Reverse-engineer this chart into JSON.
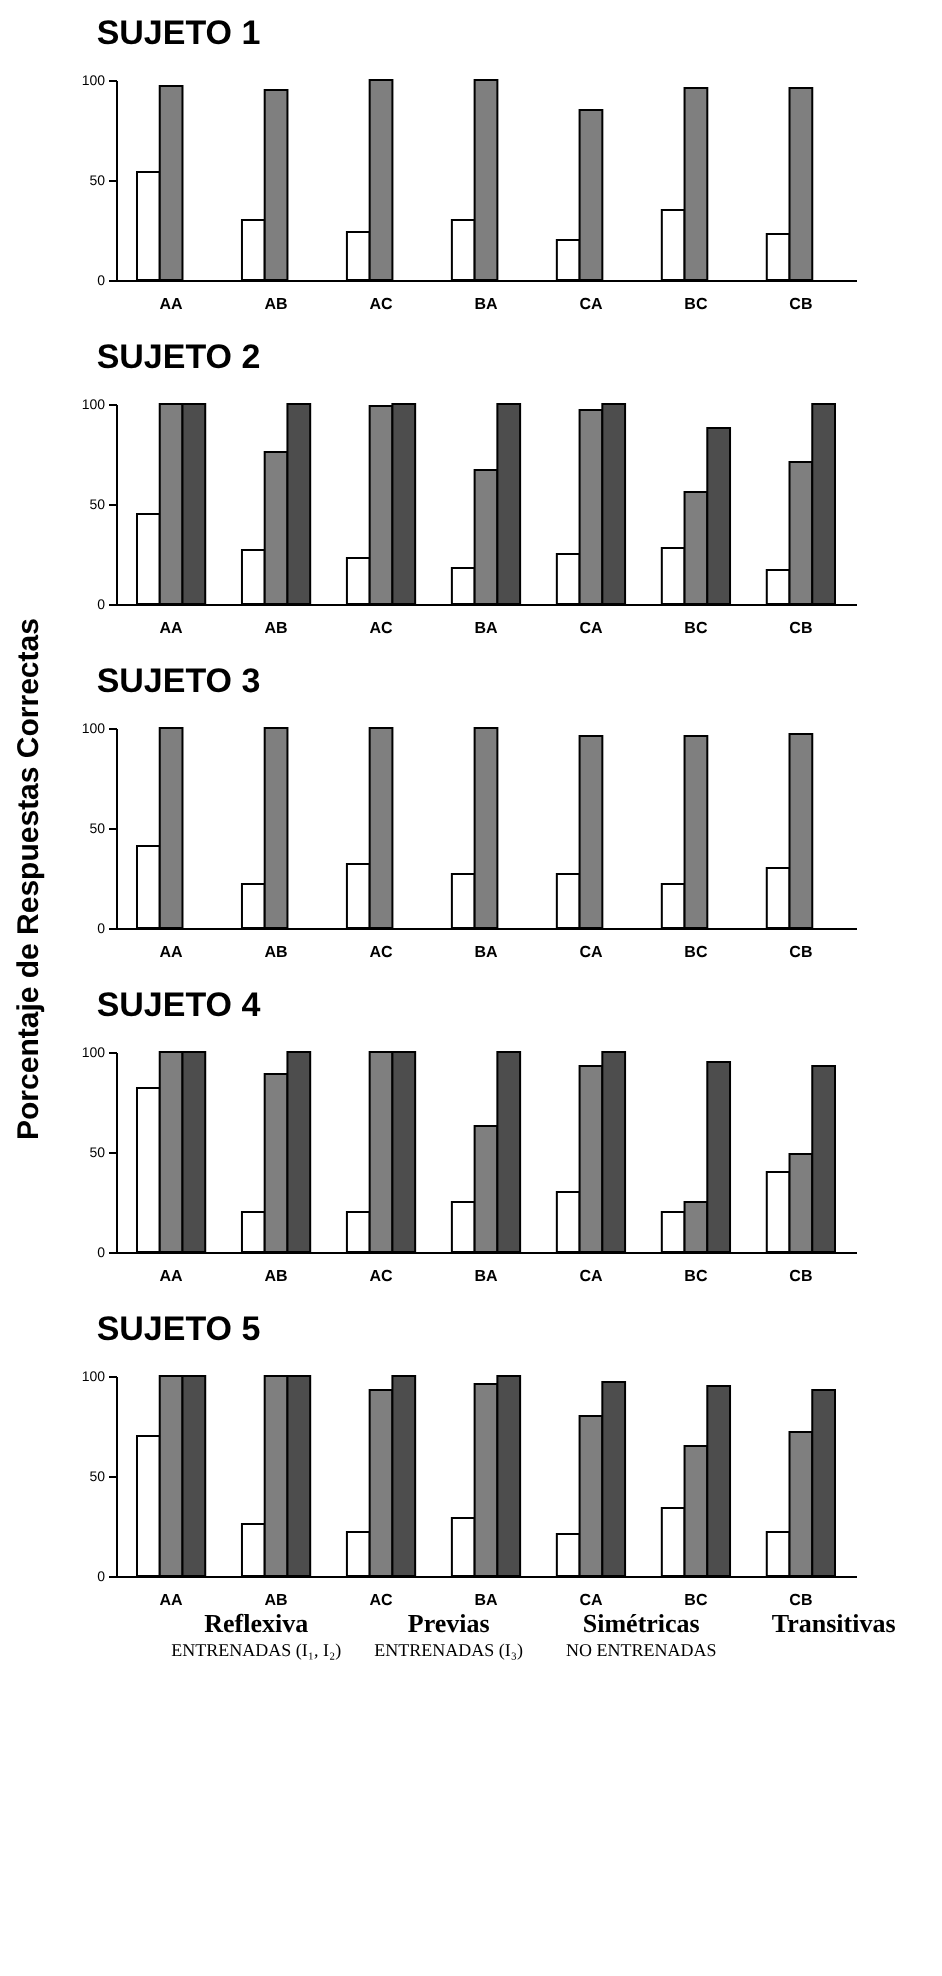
{
  "chart_data": [
    {
      "type": "bar",
      "title": "SUJETO 1",
      "categories": [
        "AA",
        "AB",
        "AC",
        "BA",
        "CA",
        "BC",
        "CB"
      ],
      "ylim": [
        0,
        100
      ],
      "yticks": [
        0,
        50,
        100
      ],
      "series": [
        {
          "color": "#ffffff",
          "values": [
            54,
            30,
            24,
            30,
            20,
            35,
            23
          ]
        },
        {
          "color": "#7f7f7f",
          "values": [
            97,
            95,
            100,
            100,
            85,
            96,
            96
          ]
        }
      ]
    },
    {
      "type": "bar",
      "title": "SUJETO 2",
      "categories": [
        "AA",
        "AB",
        "AC",
        "BA",
        "CA",
        "BC",
        "CB"
      ],
      "ylim": [
        0,
        100
      ],
      "yticks": [
        0,
        50,
        100
      ],
      "series": [
        {
          "color": "#ffffff",
          "values": [
            45,
            27,
            23,
            18,
            25,
            28,
            17
          ]
        },
        {
          "color": "#7f7f7f",
          "values": [
            100,
            76,
            99,
            67,
            97,
            56,
            71
          ]
        },
        {
          "color": "#4d4d4d",
          "values": [
            100,
            100,
            100,
            100,
            100,
            88,
            100
          ]
        }
      ]
    },
    {
      "type": "bar",
      "title": "SUJETO 3",
      "ylabel": "Porcentaje de Respuestas Correctas",
      "categories": [
        "AA",
        "AB",
        "AC",
        "BA",
        "CA",
        "BC",
        "CB"
      ],
      "ylim": [
        0,
        100
      ],
      "yticks": [
        0,
        50,
        100
      ],
      "series": [
        {
          "color": "#ffffff",
          "values": [
            41,
            22,
            32,
            27,
            27,
            22,
            30
          ]
        },
        {
          "color": "#7f7f7f",
          "values": [
            100,
            100,
            100,
            100,
            96,
            96,
            97
          ]
        }
      ]
    },
    {
      "type": "bar",
      "title": "SUJETO 4",
      "categories": [
        "AA",
        "AB",
        "AC",
        "BA",
        "CA",
        "BC",
        "CB"
      ],
      "ylim": [
        0,
        100
      ],
      "yticks": [
        0,
        50,
        100
      ],
      "series": [
        {
          "color": "#ffffff",
          "values": [
            82,
            20,
            20,
            25,
            30,
            20,
            40
          ]
        },
        {
          "color": "#7f7f7f",
          "values": [
            100,
            89,
            100,
            63,
            93,
            25,
            49
          ]
        },
        {
          "color": "#4d4d4d",
          "values": [
            100,
            100,
            100,
            100,
            100,
            95,
            93
          ]
        }
      ]
    },
    {
      "type": "bar",
      "title": "SUJETO 5",
      "categories": [
        "AA",
        "AB",
        "AC",
        "BA",
        "CA",
        "BC",
        "CB"
      ],
      "ylim": [
        0,
        100
      ],
      "yticks": [
        0,
        50,
        100
      ],
      "annotations": [
        "Reflexiva",
        "Previas",
        "Simétricas",
        "Transitivas",
        "ENTRENADAS (I₁, I₂)",
        "ENTRENADAS (I₃)",
        "NO ENTRENADAS"
      ],
      "series": [
        {
          "color": "#ffffff",
          "values": [
            70,
            26,
            22,
            29,
            21,
            34,
            22
          ]
        },
        {
          "color": "#7f7f7f",
          "values": [
            100,
            100,
            93,
            96,
            80,
            65,
            72
          ]
        },
        {
          "color": "#4d4d4d",
          "values": [
            100,
            100,
            100,
            100,
            97,
            95,
            93
          ]
        }
      ]
    }
  ]
}
